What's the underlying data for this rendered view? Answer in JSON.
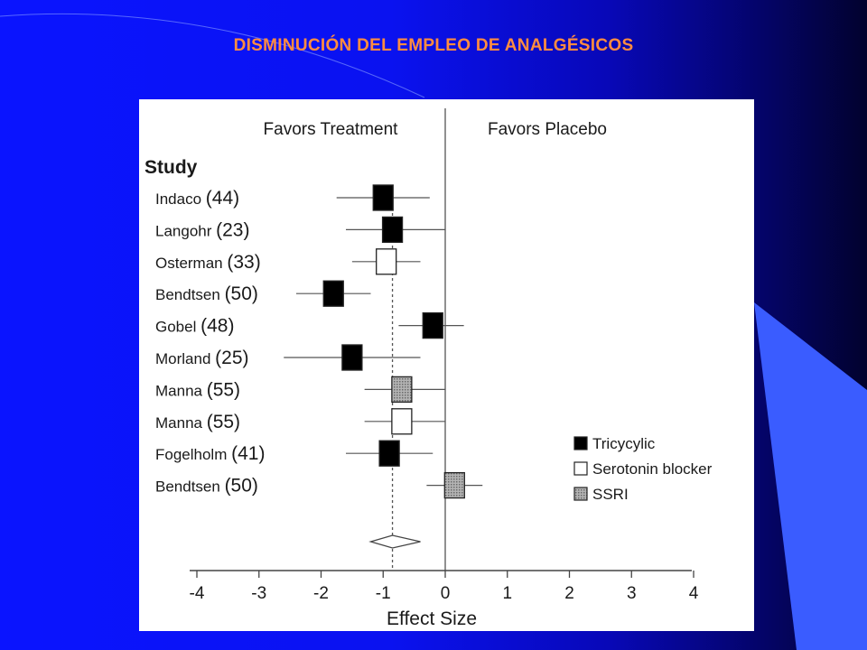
{
  "slide": {
    "title": "DISMINUCIÓN DEL EMPLEO DE ANALGÉSICOS",
    "colors": {
      "title": "#ff8c40",
      "background": "#0a14ff",
      "accent_shape": "#3a5cff"
    }
  },
  "chart_data": {
    "type": "forest",
    "header_left": "Favors Treatment",
    "header_right": "Favors Placebo",
    "study_header": "Study",
    "xlabel": "Effect Size",
    "xlim": [
      -4,
      4
    ],
    "xticks": [
      -4,
      -3,
      -2,
      -1,
      0,
      1,
      2,
      3,
      4
    ],
    "xtick_labels": [
      "-4",
      "-3",
      "-2",
      "-1",
      "0",
      "1",
      "2",
      "3",
      "4"
    ],
    "reference_line": 0,
    "pooled_line": -0.85,
    "pooled_estimate": {
      "effect": -0.85,
      "ci": [
        -1.2,
        -0.4
      ]
    },
    "studies": [
      {
        "study": "Indaco",
        "n": "(44)",
        "effect": -1.0,
        "ci": [
          -1.75,
          -0.25
        ],
        "class": "Tricyclic"
      },
      {
        "study": "Langohr",
        "n": "(23)",
        "effect": -0.85,
        "ci": [
          -1.6,
          0.0
        ],
        "class": "Tricyclic"
      },
      {
        "study": "Osterman",
        "n": "(33)",
        "effect": -0.95,
        "ci": [
          -1.5,
          -0.4
        ],
        "class": "Serotonin blocker"
      },
      {
        "study": "Bendtsen",
        "n": "(50)",
        "effect": -1.8,
        "ci": [
          -2.4,
          -1.2
        ],
        "class": "Tricyclic"
      },
      {
        "study": "Gobel",
        "n": "(48)",
        "effect": -0.2,
        "ci": [
          -0.75,
          0.3
        ],
        "class": "Tricyclic"
      },
      {
        "study": "Morland",
        "n": "(25)",
        "effect": -1.5,
        "ci": [
          -2.6,
          -0.4
        ],
        "class": "Tricyclic"
      },
      {
        "study": "Manna",
        "n": "(55)",
        "effect": -0.7,
        "ci": [
          -1.3,
          0.0
        ],
        "class": "SSRI"
      },
      {
        "study": "Manna",
        "n": "(55)",
        "effect": -0.7,
        "ci": [
          -1.3,
          0.0
        ],
        "class": "Serotonin blocker"
      },
      {
        "study": "Fogelholm",
        "n": "(41)",
        "effect": -0.9,
        "ci": [
          -1.6,
          -0.2
        ],
        "class": "Tricyclic"
      },
      {
        "study": "Bendtsen",
        "n": "(50)",
        "effect": 0.15,
        "ci": [
          -0.3,
          0.6
        ],
        "class": "SSRI"
      }
    ],
    "legend": [
      {
        "label": "Tricycylic",
        "class": "Tricyclic",
        "fill": "#000000"
      },
      {
        "label": "Serotonin blocker",
        "class": "Serotonin blocker",
        "fill": "#ffffff"
      },
      {
        "label": "SSRI",
        "class": "SSRI",
        "fill": "#9a9a9a"
      }
    ],
    "legend_position": "bottom-right",
    "grid": false
  }
}
